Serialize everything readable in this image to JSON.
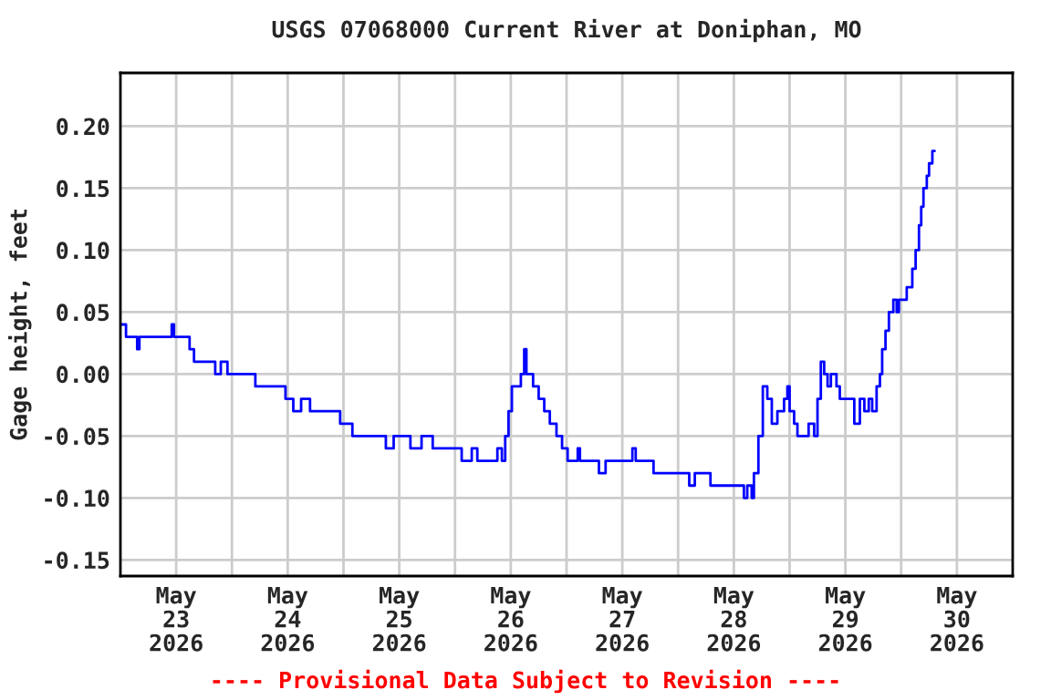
{
  "chart_data": {
    "type": "step",
    "title": "USGS 07068000 Current River at Doniphan, MO",
    "ylabel": "Gage height, feet",
    "annotations": [
      "---- Provisional Data Subject to Revision ----"
    ],
    "series": [
      {
        "color": "#0000ff",
        "x": [
          "2026-05-23T00:00",
          "2026-05-23T01:12",
          "2026-05-23T03:36",
          "2026-05-23T04:05",
          "2026-05-23T11:02",
          "2026-05-23T11:31",
          "2026-05-23T14:10",
          "2026-05-23T14:53",
          "2026-05-23T15:50",
          "2026-05-23T18:00",
          "2026-05-23T20:24",
          "2026-05-23T21:36",
          "2026-05-23T23:02",
          "2026-05-24T05:02",
          "2026-05-24T11:31",
          "2026-05-24T13:12",
          "2026-05-24T14:53",
          "2026-05-24T16:48",
          "2026-05-24T23:17",
          "2026-05-25T01:55",
          "2026-05-25T09:07",
          "2026-05-25T10:48",
          "2026-05-25T14:24",
          "2026-05-25T16:48",
          "2026-05-25T19:12",
          "2026-05-26T01:26",
          "2026-05-26T03:36",
          "2026-05-26T04:48",
          "2026-05-26T09:07",
          "2026-05-26T10:05",
          "2026-05-26T10:48",
          "2026-05-26T11:31",
          "2026-05-26T12:14",
          "2026-05-26T14:10",
          "2026-05-26T14:53",
          "2026-05-26T15:22",
          "2026-05-26T16:48",
          "2026-05-26T18:00",
          "2026-05-26T19:12",
          "2026-05-26T20:24",
          "2026-05-26T21:50",
          "2026-05-26T23:02",
          "2026-05-27T00:14",
          "2026-05-27T02:24",
          "2026-05-27T02:53",
          "2026-05-27T06:58",
          "2026-05-27T08:24",
          "2026-05-27T12:00",
          "2026-05-27T14:10",
          "2026-05-27T14:53",
          "2026-05-27T18:43",
          "2026-05-27T22:34",
          "2026-05-28T02:24",
          "2026-05-28T03:36",
          "2026-05-28T06:58",
          "2026-05-28T14:10",
          "2026-05-28T14:53",
          "2026-05-28T15:50",
          "2026-05-28T16:19",
          "2026-05-28T17:17",
          "2026-05-28T18:14",
          "2026-05-28T19:12",
          "2026-05-28T20:10",
          "2026-05-28T21:22",
          "2026-05-28T22:48",
          "2026-05-28T23:31",
          "2026-05-29T00:00",
          "2026-05-29T00:58",
          "2026-05-29T01:41",
          "2026-05-29T04:05",
          "2026-05-29T05:17",
          "2026-05-29T06:00",
          "2026-05-29T06:43",
          "2026-05-29T07:26",
          "2026-05-29T08:10",
          "2026-05-29T08:53",
          "2026-05-29T10:05",
          "2026-05-29T10:48",
          "2026-05-29T12:43",
          "2026-05-29T13:55",
          "2026-05-29T15:07",
          "2026-05-29T16:05",
          "2026-05-29T17:02",
          "2026-05-29T17:46",
          "2026-05-29T18:43",
          "2026-05-29T19:26",
          "2026-05-29T19:55",
          "2026-05-29T20:38",
          "2026-05-29T21:22",
          "2026-05-29T22:19",
          "2026-05-29T23:02",
          "2026-05-29T23:31",
          "2026-05-30T01:12",
          "2026-05-30T02:24",
          "2026-05-30T03:07",
          "2026-05-30T03:50",
          "2026-05-30T04:19",
          "2026-05-30T04:48",
          "2026-05-30T05:31",
          "2026-05-30T06:00",
          "2026-05-30T06:43",
          "2026-05-30T07:12"
        ],
        "values": [
          0.04,
          0.03,
          0.02,
          0.03,
          0.04,
          0.03,
          0.03,
          0.02,
          0.01,
          0.01,
          0.0,
          0.01,
          0.0,
          -0.01,
          -0.02,
          -0.03,
          -0.02,
          -0.03,
          -0.04,
          -0.05,
          -0.06,
          -0.05,
          -0.06,
          -0.05,
          -0.06,
          -0.07,
          -0.06,
          -0.07,
          -0.06,
          -0.07,
          -0.05,
          -0.03,
          -0.01,
          0.0,
          0.02,
          0.0,
          -0.01,
          -0.02,
          -0.03,
          -0.04,
          -0.05,
          -0.06,
          -0.07,
          -0.06,
          -0.07,
          -0.08,
          -0.07,
          -0.07,
          -0.06,
          -0.07,
          -0.08,
          -0.08,
          -0.09,
          -0.08,
          -0.09,
          -0.1,
          -0.09,
          -0.1,
          -0.08,
          -0.05,
          -0.01,
          -0.02,
          -0.04,
          -0.03,
          -0.02,
          -0.01,
          -0.03,
          -0.04,
          -0.05,
          -0.04,
          -0.05,
          -0.02,
          0.01,
          0.0,
          -0.01,
          0.0,
          -0.01,
          -0.02,
          -0.02,
          -0.04,
          -0.02,
          -0.03,
          -0.02,
          -0.03,
          -0.01,
          0.0,
          0.02,
          0.035,
          0.05,
          0.06,
          0.05,
          0.06,
          0.07,
          0.085,
          0.1,
          0.12,
          0.135,
          0.15,
          0.16,
          0.17,
          0.18,
          0.18
        ]
      }
    ],
    "xlim": [
      "2026-05-23T00:00",
      "2026-05-31T00:00"
    ],
    "xticks": [
      {
        "value": "2026-05-23T12:00",
        "label": "May\n23\n2026"
      },
      {
        "value": "2026-05-24T12:00",
        "label": "May\n24\n2026"
      },
      {
        "value": "2026-05-25T12:00",
        "label": "May\n25\n2026"
      },
      {
        "value": "2026-05-26T12:00",
        "label": "May\n26\n2026"
      },
      {
        "value": "2026-05-27T12:00",
        "label": "May\n27\n2026"
      },
      {
        "value": "2026-05-28T12:00",
        "label": "May\n28\n2026"
      },
      {
        "value": "2026-05-29T12:00",
        "label": "May\n29\n2026"
      },
      {
        "value": "2026-05-30T12:00",
        "label": "May\n30\n2026"
      },
      {
        "value": "2026-05-24T00:00",
        "label": null
      },
      {
        "value": "2026-05-25T00:00",
        "label": null
      },
      {
        "value": "2026-05-26T00:00",
        "label": null
      },
      {
        "value": "2026-05-27T00:00",
        "label": null
      },
      {
        "value": "2026-05-28T00:00",
        "label": null
      },
      {
        "value": "2026-05-29T00:00",
        "label": null
      },
      {
        "value": "2026-05-30T00:00",
        "label": null
      }
    ],
    "ylim": [
      -0.163,
      0.243
    ],
    "yticks": [
      {
        "value": 0.2,
        "label": "0.20"
      },
      {
        "value": 0.15,
        "label": "0.15"
      },
      {
        "value": 0.1,
        "label": "0.10"
      },
      {
        "value": 0.05,
        "label": "0.05"
      },
      {
        "value": 0.0,
        "label": "0.00"
      },
      {
        "value": -0.05,
        "label": "-0.05"
      },
      {
        "value": -0.1,
        "label": "-0.10"
      },
      {
        "value": -0.15,
        "label": "-0.15"
      }
    ],
    "grid": true
  }
}
